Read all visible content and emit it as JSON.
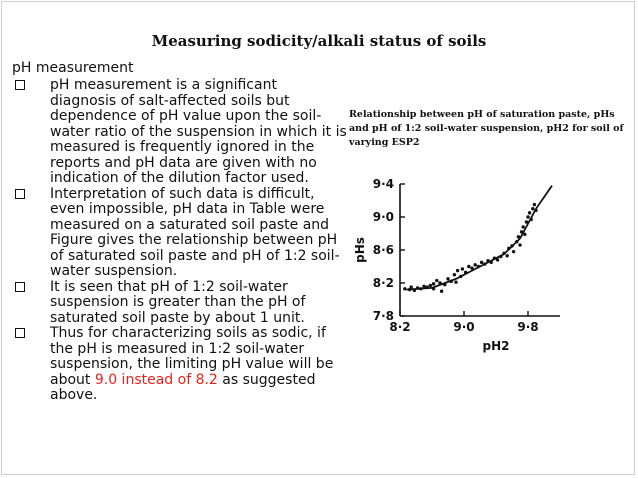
{
  "slide": {
    "title": "Measuring sodicity/alkali status of soils",
    "heading": "pH measurement",
    "bullets": [
      {
        "text": "pH measurement is a significant diagnosis of salt-affected soils but dependence of pH value upon the soil-water ratio of the suspension in which it is measured is frequently ignored in the reports and pH data are given with no indication of the dilution factor used."
      },
      {
        "text": "Interpretation of such data is difficult, even impossible, pH data in Table were measured on a saturated soil paste and Figure gives the relationship between pH of saturated soil paste and pH of 1:2 soil-water suspension."
      },
      {
        "text": "It is seen that pH of 1:2 soil-water suspension is greater than the pH of saturated soil paste by about 1 unit."
      },
      {
        "text_before": "Thus for characterizing soils as sodic, if the pH is measured in 1:2 soil-water suspension, the limiting pH value will be about ",
        "highlight": "9.0 instead of 8.2",
        "text_after": " as suggested above.",
        "highlight_color": "#e8221b"
      }
    ],
    "figure_caption": "Relationship between pH of saturation paste, pHs and pH of 1:2 soil-water suspension, pH2 for soil of varying ESP2"
  },
  "chart_data": {
    "type": "scatter",
    "xlabel": "pH2",
    "ylabel": "pHs",
    "xlim": [
      8.2,
      10.2
    ],
    "ylim": [
      7.8,
      9.4
    ],
    "x_ticks": [
      "8·2",
      "9·0",
      "9·8"
    ],
    "y_ticks": [
      "7·8",
      "8·2",
      "8·6",
      "9·0",
      "9·4"
    ],
    "points": [
      [
        8.26,
        8.13
      ],
      [
        8.32,
        8.12
      ],
      [
        8.34,
        8.15
      ],
      [
        8.38,
        8.11
      ],
      [
        8.42,
        8.14
      ],
      [
        8.46,
        8.13
      ],
      [
        8.5,
        8.16
      ],
      [
        8.54,
        8.15
      ],
      [
        8.58,
        8.17
      ],
      [
        8.62,
        8.19
      ],
      [
        8.62,
        8.13
      ],
      [
        8.66,
        8.23
      ],
      [
        8.7,
        8.2
      ],
      [
        8.72,
        8.1
      ],
      [
        8.76,
        8.18
      ],
      [
        8.8,
        8.25
      ],
      [
        8.84,
        8.22
      ],
      [
        8.88,
        8.3
      ],
      [
        8.9,
        8.21
      ],
      [
        8.92,
        8.35
      ],
      [
        8.96,
        8.28
      ],
      [
        8.98,
        8.37
      ],
      [
        9.02,
        8.33
      ],
      [
        9.06,
        8.4
      ],
      [
        9.1,
        8.38
      ],
      [
        9.14,
        8.42
      ],
      [
        9.18,
        8.4
      ],
      [
        9.22,
        8.45
      ],
      [
        9.26,
        8.43
      ],
      [
        9.3,
        8.47
      ],
      [
        9.34,
        8.45
      ],
      [
        9.38,
        8.5
      ],
      [
        9.42,
        8.48
      ],
      [
        9.46,
        8.52
      ],
      [
        9.5,
        8.56
      ],
      [
        9.54,
        8.53
      ],
      [
        9.56,
        8.62
      ],
      [
        9.6,
        8.65
      ],
      [
        9.62,
        8.58
      ],
      [
        9.66,
        8.7
      ],
      [
        9.68,
        8.76
      ],
      [
        9.7,
        8.66
      ],
      [
        9.72,
        8.82
      ],
      [
        9.74,
        8.88
      ],
      [
        9.76,
        8.79
      ],
      [
        9.78,
        8.94
      ],
      [
        9.8,
        9.0
      ],
      [
        9.82,
        9.05
      ],
      [
        9.84,
        8.97
      ],
      [
        9.86,
        9.1
      ],
      [
        9.88,
        9.15
      ],
      [
        9.9,
        9.08
      ]
    ],
    "trend": [
      [
        8.28,
        8.12
      ],
      [
        8.6,
        8.14
      ],
      [
        8.9,
        8.25
      ],
      [
        9.2,
        8.4
      ],
      [
        9.5,
        8.55
      ],
      [
        9.7,
        8.74
      ],
      [
        9.9,
        9.1
      ],
      [
        10.1,
        9.38
      ]
    ],
    "grid": false,
    "legend": "none"
  }
}
